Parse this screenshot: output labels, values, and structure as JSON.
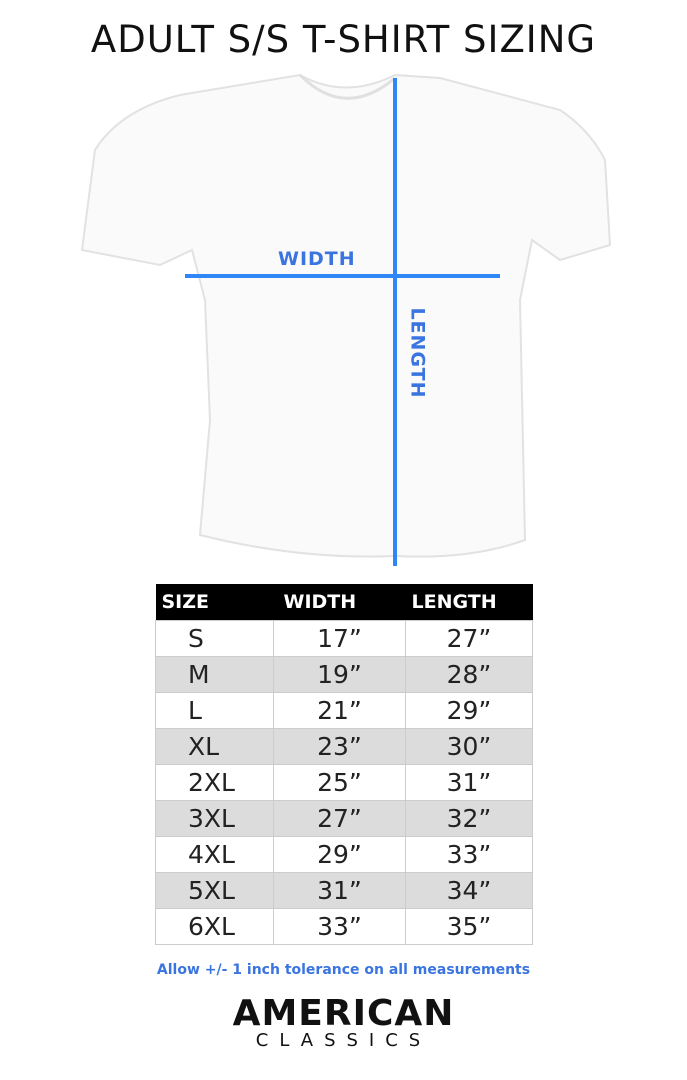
{
  "title": "ADULT S/S T-SHIRT SIZING",
  "diagram": {
    "width_label": "WIDTH",
    "length_label": "LENGTH",
    "line_color": "#2f86f5"
  },
  "table": {
    "headers": [
      "SIZE",
      "WIDTH",
      "LENGTH"
    ],
    "rows": [
      [
        "S",
        "17”",
        "27”"
      ],
      [
        "M",
        "19”",
        "28”"
      ],
      [
        "L",
        "21”",
        "29”"
      ],
      [
        "XL",
        "23”",
        "30”"
      ],
      [
        "2XL",
        "25”",
        "31”"
      ],
      [
        "3XL",
        "27”",
        "32”"
      ],
      [
        "4XL",
        "29”",
        "33”"
      ],
      [
        "5XL",
        "31”",
        "34”"
      ],
      [
        "6XL",
        "33”",
        "35”"
      ]
    ]
  },
  "note": "Allow +/- 1 inch tolerance on all measurements",
  "logo": {
    "line1": "AMERICAN",
    "line2": "CLASSICS"
  }
}
